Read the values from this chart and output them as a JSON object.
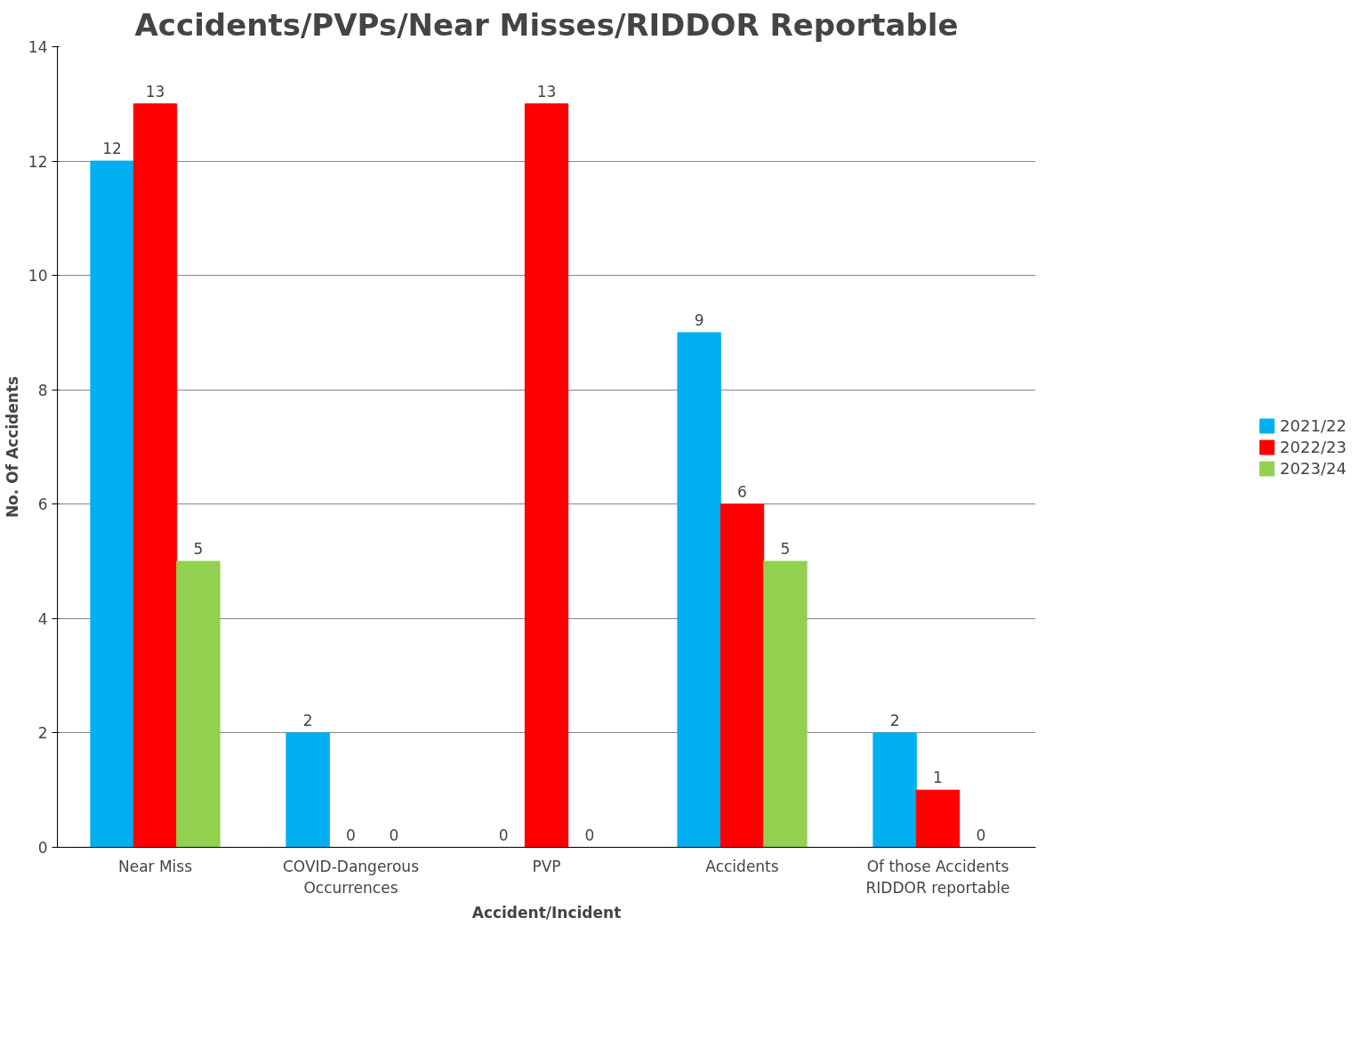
{
  "chart_data": {
    "type": "bar",
    "title": "Accidents/PVPs/Near Misses/RIDDOR Reportable",
    "xlabel": "Accident/Incident",
    "ylabel": "No. Of Accidents",
    "categories": [
      "Near Miss",
      "COVID-Dangerous\nOccurrences",
      "PVP",
      "Accidents",
      "Of those Accidents\nRIDDOR reportable"
    ],
    "series": [
      {
        "name": "2021/22",
        "color": "#00b0f0",
        "values": [
          12,
          2,
          0,
          9,
          2
        ]
      },
      {
        "name": "2022/23",
        "color": "#ff0000",
        "values": [
          13,
          0,
          13,
          6,
          1
        ]
      },
      {
        "name": "2023/24",
        "color": "#92d050",
        "values": [
          5,
          0,
          0,
          5,
          0
        ]
      }
    ],
    "ylim": [
      0,
      14
    ],
    "yticks": [
      0,
      2,
      4,
      6,
      8,
      10,
      12,
      14
    ],
    "grid": "y",
    "legend": "right",
    "data_labels": true
  }
}
